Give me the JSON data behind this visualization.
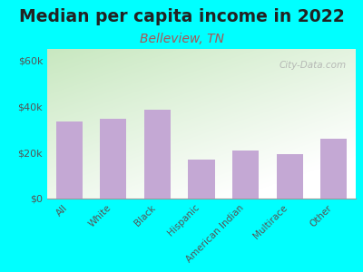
{
  "title": "Median per capita income in 2022",
  "subtitle": "Belleview, TN",
  "categories": [
    "All",
    "White",
    "Black",
    "Hispanic",
    "American Indian",
    "Multirace",
    "Other"
  ],
  "values": [
    33500,
    34500,
    38500,
    17000,
    21000,
    19500,
    26000
  ],
  "bar_color": "#c4a8d4",
  "title_fontsize": 13.5,
  "subtitle_fontsize": 10,
  "subtitle_color": "#aa5555",
  "title_color": "#222222",
  "tick_label_color": "#555555",
  "ytick_labels": [
    "$0",
    "$20k",
    "$40k",
    "$60k"
  ],
  "ytick_values": [
    0,
    20000,
    40000,
    60000
  ],
  "ylim": [
    0,
    65000
  ],
  "background_outer": "#00ffff",
  "watermark": "City-Data.com",
  "watermark_color": "#aaaaaa",
  "grad_top_left": "#c8e8c0",
  "grad_white": "#ffffff"
}
